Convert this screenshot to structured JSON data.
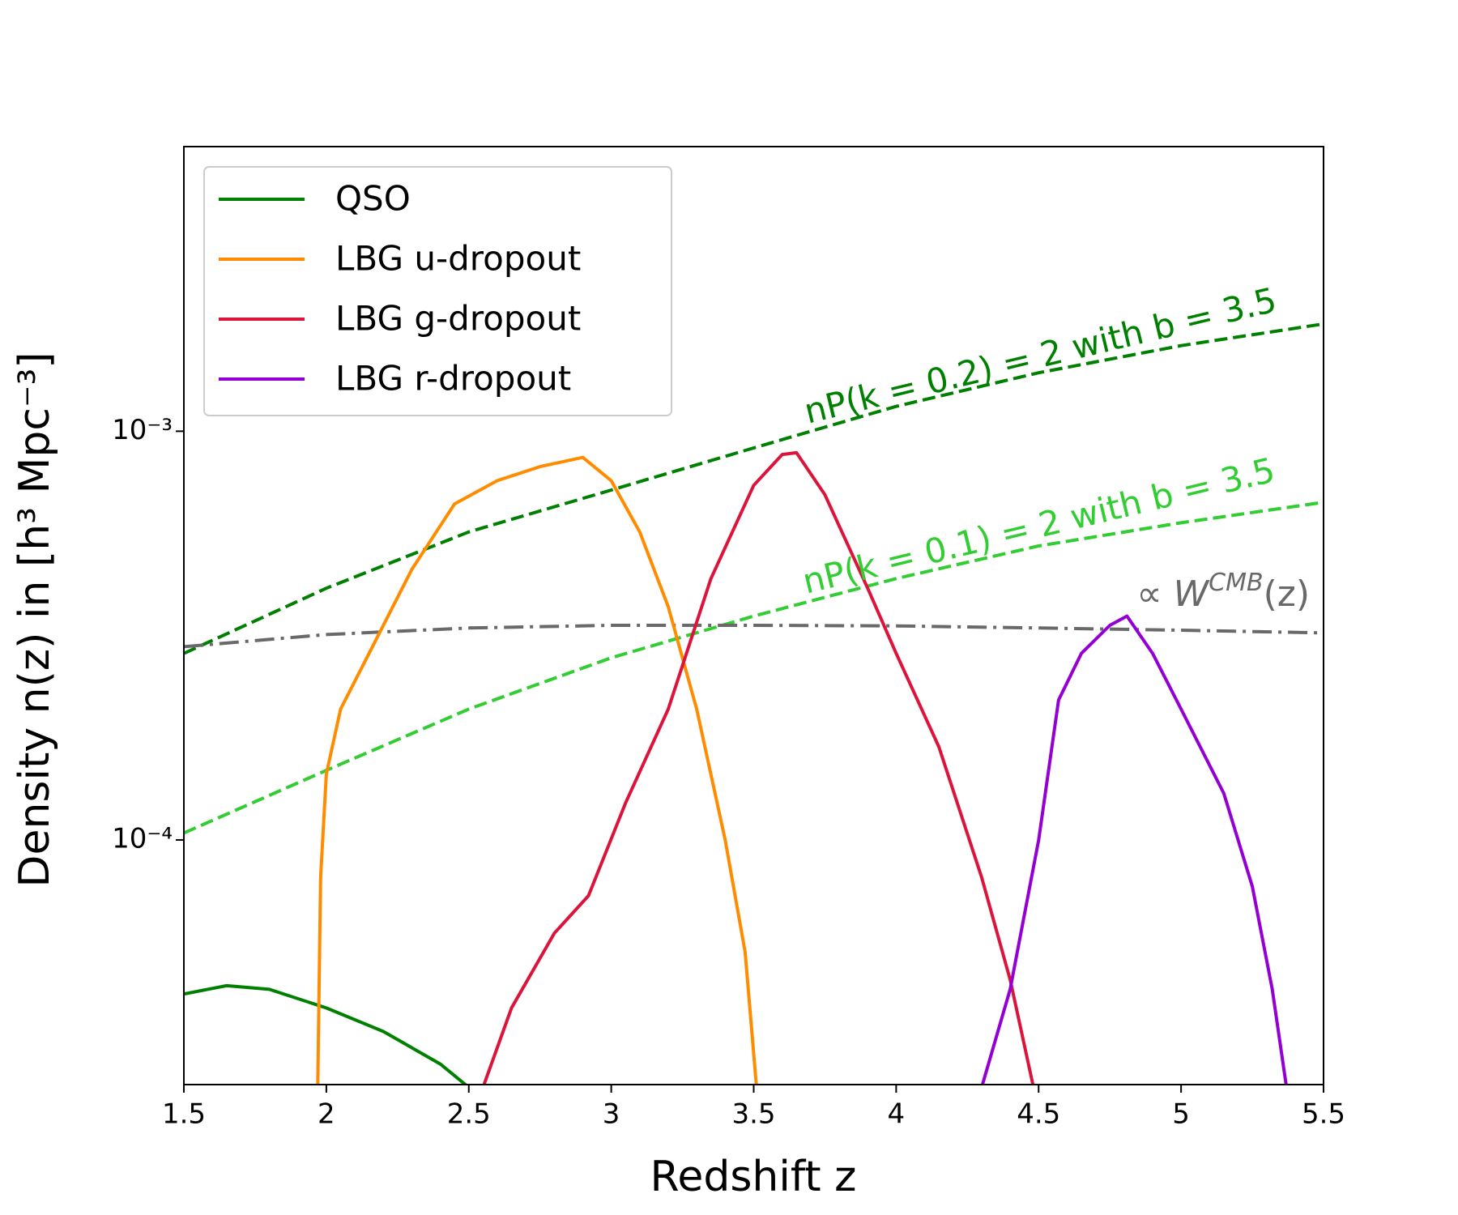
{
  "chart_data": {
    "type": "line",
    "xlabel": "Redshift z",
    "ylabel": "Density n(z) in [h³ Mpc⁻³]",
    "xlim": [
      1.5,
      5.5
    ],
    "xticks": [
      1.5,
      2.0,
      2.5,
      3.0,
      3.5,
      4.0,
      4.5,
      5.0,
      5.5
    ],
    "ylim": [
      2.52e-05,
      0.00497
    ],
    "yticks": [
      {
        "value": 0.0001,
        "label": "10⁻⁴"
      },
      {
        "value": 0.001,
        "label": "10⁻³"
      }
    ],
    "log_y": true,
    "legend": "upper left",
    "series": [
      {
        "name": "QSO",
        "color": "#008000",
        "x": [
          1.5,
          1.65,
          1.8,
          2.0,
          2.2,
          2.4,
          2.5
        ],
        "values": [
          4.2e-05,
          4.4e-05,
          4.31e-05,
          3.88e-05,
          3.4e-05,
          2.83e-05,
          2.48e-05
        ]
      },
      {
        "name": "LBG u-dropout",
        "color": "#ff8c00",
        "x": [
          1.97,
          1.98,
          2.0,
          2.05,
          2.15,
          2.3,
          2.45,
          2.6,
          2.75,
          2.9,
          3.0,
          3.1,
          3.2,
          3.3,
          3.4,
          3.47,
          3.51
        ],
        "values": [
          2.5e-05,
          8.1e-05,
          0.000145,
          0.000209,
          0.000286,
          0.000459,
          0.000664,
          0.000757,
          0.000819,
          0.000863,
          0.000757,
          0.000567,
          0.000372,
          0.000209,
          0.0001,
          5.32e-05,
          2.48e-05
        ]
      },
      {
        "name": "LBG g-dropout",
        "color": "#dc143c",
        "x": [
          2.55,
          2.65,
          2.8,
          2.92,
          3.05,
          3.2,
          3.35,
          3.5,
          3.6,
          3.65,
          3.75,
          3.9,
          4.0,
          4.15,
          4.3,
          4.4,
          4.48
        ],
        "values": [
          2.48e-05,
          3.88e-05,
          5.91e-05,
          7.3e-05,
          0.000123,
          0.000209,
          0.000436,
          0.000737,
          0.000877,
          0.000886,
          0.000699,
          0.000413,
          0.000286,
          0.000169,
          8.1e-05,
          4.55e-05,
          2.52e-05
        ]
      },
      {
        "name": "LBG r-dropout",
        "color": "#9400d3",
        "x": [
          4.3,
          4.4,
          4.5,
          4.57,
          4.65,
          4.75,
          4.81,
          4.9,
          5.0,
          5.15,
          5.25,
          5.32,
          5.37
        ],
        "values": [
          2.48e-05,
          4.31e-05,
          0.0001,
          0.00022,
          0.000286,
          0.000335,
          0.000353,
          0.000286,
          0.000209,
          0.00013,
          7.69e-05,
          4.31e-05,
          2.48e-05
        ]
      }
    ],
    "reference_lines": [
      {
        "label": "nP(k = 0.2) = 2 with b = 3.5",
        "color": "#008000",
        "style": "dashed",
        "x": [
          1.5,
          2.0,
          2.5,
          3.0,
          3.5,
          4.0,
          4.5,
          5.0,
          5.5
        ],
        "values": [
          0.000286,
          0.000413,
          0.000567,
          0.000718,
          0.00091,
          0.00115,
          0.00139,
          0.00162,
          0.00183
        ]
      },
      {
        "label": "nP(k = 0.1) = 2 with b = 3.5",
        "color": "#32cd32",
        "style": "dashed",
        "x": [
          1.5,
          2.0,
          2.5,
          3.0,
          3.5,
          4.0,
          4.5,
          5.0,
          5.5
        ],
        "values": [
          0.000104,
          0.000148,
          0.000209,
          0.000279,
          0.000353,
          0.000436,
          0.000524,
          0.000597,
          0.00067
        ]
      },
      {
        "label": {
          "prefix": "∝ W",
          "sup": "CMB",
          "suffix": "(z)"
        },
        "color": "#696969",
        "style": "dashdot",
        "x": [
          1.5,
          2.0,
          2.5,
          3.0,
          3.5,
          4.0,
          4.5,
          5.0,
          5.5
        ],
        "values": [
          0.000297,
          0.000318,
          0.00033,
          0.000335,
          0.000335,
          0.000334,
          0.00033,
          0.000326,
          0.000321
        ]
      }
    ]
  }
}
